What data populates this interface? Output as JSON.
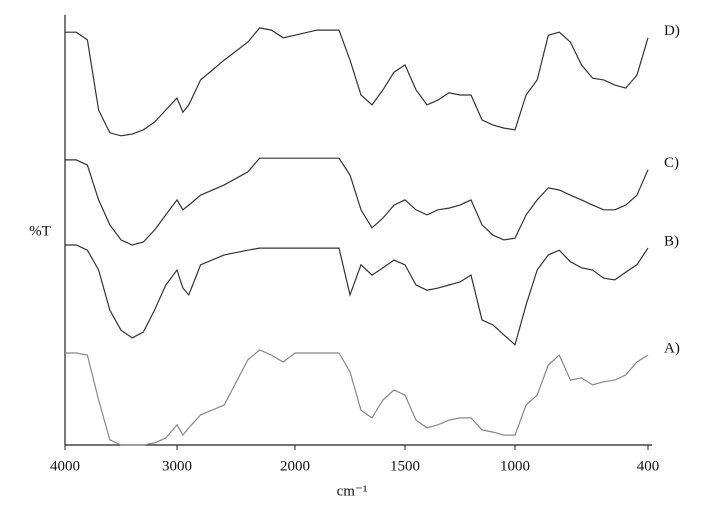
{
  "chart_data": {
    "type": "line",
    "xlabel": "cm⁻¹",
    "ylabel": "%T",
    "x": [
      4000,
      3900,
      3800,
      3700,
      3600,
      3500,
      3400,
      3300,
      3200,
      3100,
      3000,
      2950,
      2900,
      2800,
      2600,
      2400,
      2300,
      2200,
      2100,
      2000,
      1900,
      1800,
      1750,
      1700,
      1650,
      1600,
      1550,
      1500,
      1450,
      1400,
      1350,
      1300,
      1250,
      1200,
      1150,
      1100,
      1050,
      1000,
      950,
      900,
      850,
      800,
      750,
      700,
      650,
      600,
      550,
      500,
      450,
      400
    ],
    "xlim": [
      4000,
      400
    ],
    "xticks": [
      4000,
      3000,
      2000,
      1500,
      1000,
      400
    ],
    "ylim": [
      0,
      100
    ],
    "series": [
      {
        "name": "D)",
        "color": "#333333",
        "values": [
          96.0,
          96.0,
          94.2,
          77.9,
          72.6,
          71.9,
          72.3,
          73.3,
          75.1,
          77.9,
          80.7,
          77.4,
          79.1,
          84.9,
          89.5,
          93.7,
          97.0,
          96.5,
          94.7,
          95.3,
          96.5,
          96.5,
          89.5,
          81.4,
          79.1,
          82.6,
          86.7,
          88.4,
          82.6,
          79.1,
          80.2,
          81.9,
          81.4,
          81.4,
          75.6,
          74.4,
          73.7,
          73.3,
          81.4,
          84.9,
          95.3,
          96.0,
          93.7,
          88.4,
          85.3,
          84.9,
          83.7,
          83.0,
          86.0,
          94.7
        ]
      },
      {
        "name": "C)",
        "color": "#333333",
        "values": [
          66.3,
          66.3,
          65.1,
          57.0,
          51.2,
          47.7,
          46.5,
          47.2,
          50.0,
          53.5,
          57.0,
          54.7,
          55.8,
          58.1,
          60.5,
          63.5,
          66.7,
          66.7,
          66.7,
          66.7,
          66.7,
          66.7,
          62.8,
          54.7,
          50.5,
          52.8,
          55.8,
          57.0,
          54.7,
          53.5,
          54.7,
          55.1,
          55.8,
          57.0,
          51.2,
          48.8,
          47.7,
          48.1,
          53.5,
          57.0,
          59.8,
          59.3,
          58.1,
          57.0,
          55.8,
          54.7,
          54.7,
          55.8,
          58.1,
          64.0
        ]
      },
      {
        "name": "B)",
        "color": "#333333",
        "values": [
          46.5,
          46.5,
          45.3,
          40.7,
          31.4,
          26.7,
          24.9,
          26.3,
          31.4,
          37.2,
          40.7,
          36.5,
          34.9,
          41.9,
          44.2,
          45.3,
          45.8,
          45.8,
          45.8,
          45.8,
          45.8,
          45.8,
          34.9,
          41.9,
          39.5,
          41.2,
          43.0,
          41.9,
          37.2,
          36.0,
          36.5,
          37.2,
          37.9,
          39.5,
          29.1,
          27.9,
          25.6,
          23.3,
          32.6,
          40.7,
          44.2,
          45.3,
          42.6,
          41.2,
          40.7,
          38.8,
          38.4,
          40.2,
          41.9,
          45.8
        ]
      },
      {
        "name": "A)",
        "color": "#888888",
        "values": [
          21.4,
          21.4,
          20.9,
          10.5,
          1.2,
          0,
          0,
          0,
          0.5,
          1.6,
          4.7,
          2.3,
          4.0,
          7.0,
          9.3,
          19.8,
          22.1,
          20.9,
          19.3,
          21.4,
          21.4,
          21.4,
          17.0,
          8.1,
          6.3,
          10.5,
          12.8,
          11.6,
          5.8,
          4.0,
          4.7,
          5.8,
          6.3,
          6.3,
          3.5,
          3.0,
          2.3,
          2.3,
          9.3,
          11.6,
          18.6,
          20.9,
          15.1,
          15.6,
          14.0,
          14.7,
          15.1,
          16.3,
          19.3,
          20.9
        ]
      }
    ]
  }
}
